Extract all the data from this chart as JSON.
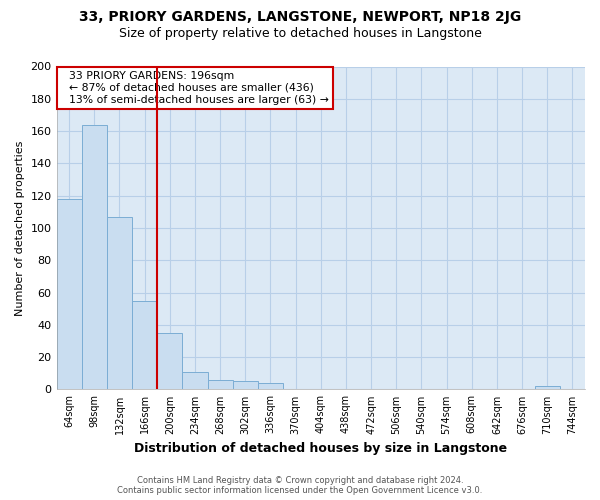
{
  "title": "33, PRIORY GARDENS, LANGSTONE, NEWPORT, NP18 2JG",
  "subtitle": "Size of property relative to detached houses in Langstone",
  "bar_labels": [
    "64sqm",
    "98sqm",
    "132sqm",
    "166sqm",
    "200sqm",
    "234sqm",
    "268sqm",
    "302sqm",
    "336sqm",
    "370sqm",
    "404sqm",
    "438sqm",
    "472sqm",
    "506sqm",
    "540sqm",
    "574sqm",
    "608sqm",
    "642sqm",
    "676sqm",
    "710sqm",
    "744sqm"
  ],
  "bar_values": [
    118,
    164,
    107,
    55,
    35,
    11,
    6,
    5,
    4,
    0,
    0,
    0,
    0,
    0,
    0,
    0,
    0,
    0,
    0,
    2,
    0
  ],
  "bar_color": "#c9ddf0",
  "bar_edge_color": "#7badd4",
  "vline_color": "#cc0000",
  "annotation_title": "33 PRIORY GARDENS: 196sqm",
  "annotation_line1": "← 87% of detached houses are smaller (436)",
  "annotation_line2": "13% of semi-detached houses are larger (63) →",
  "annotation_box_color": "#ffffff",
  "annotation_box_edge_color": "#cc0000",
  "xlabel": "Distribution of detached houses by size in Langstone",
  "ylabel": "Number of detached properties",
  "ylim": [
    0,
    200
  ],
  "yticks": [
    0,
    20,
    40,
    60,
    80,
    100,
    120,
    140,
    160,
    180,
    200
  ],
  "footer_line1": "Contains HM Land Registry data © Crown copyright and database right 2024.",
  "footer_line2": "Contains public sector information licensed under the Open Government Licence v3.0.",
  "bg_color": "#ffffff",
  "plot_bg_color": "#dce9f5",
  "grid_color": "#b8cfe8",
  "title_fontsize": 10,
  "subtitle_fontsize": 9
}
